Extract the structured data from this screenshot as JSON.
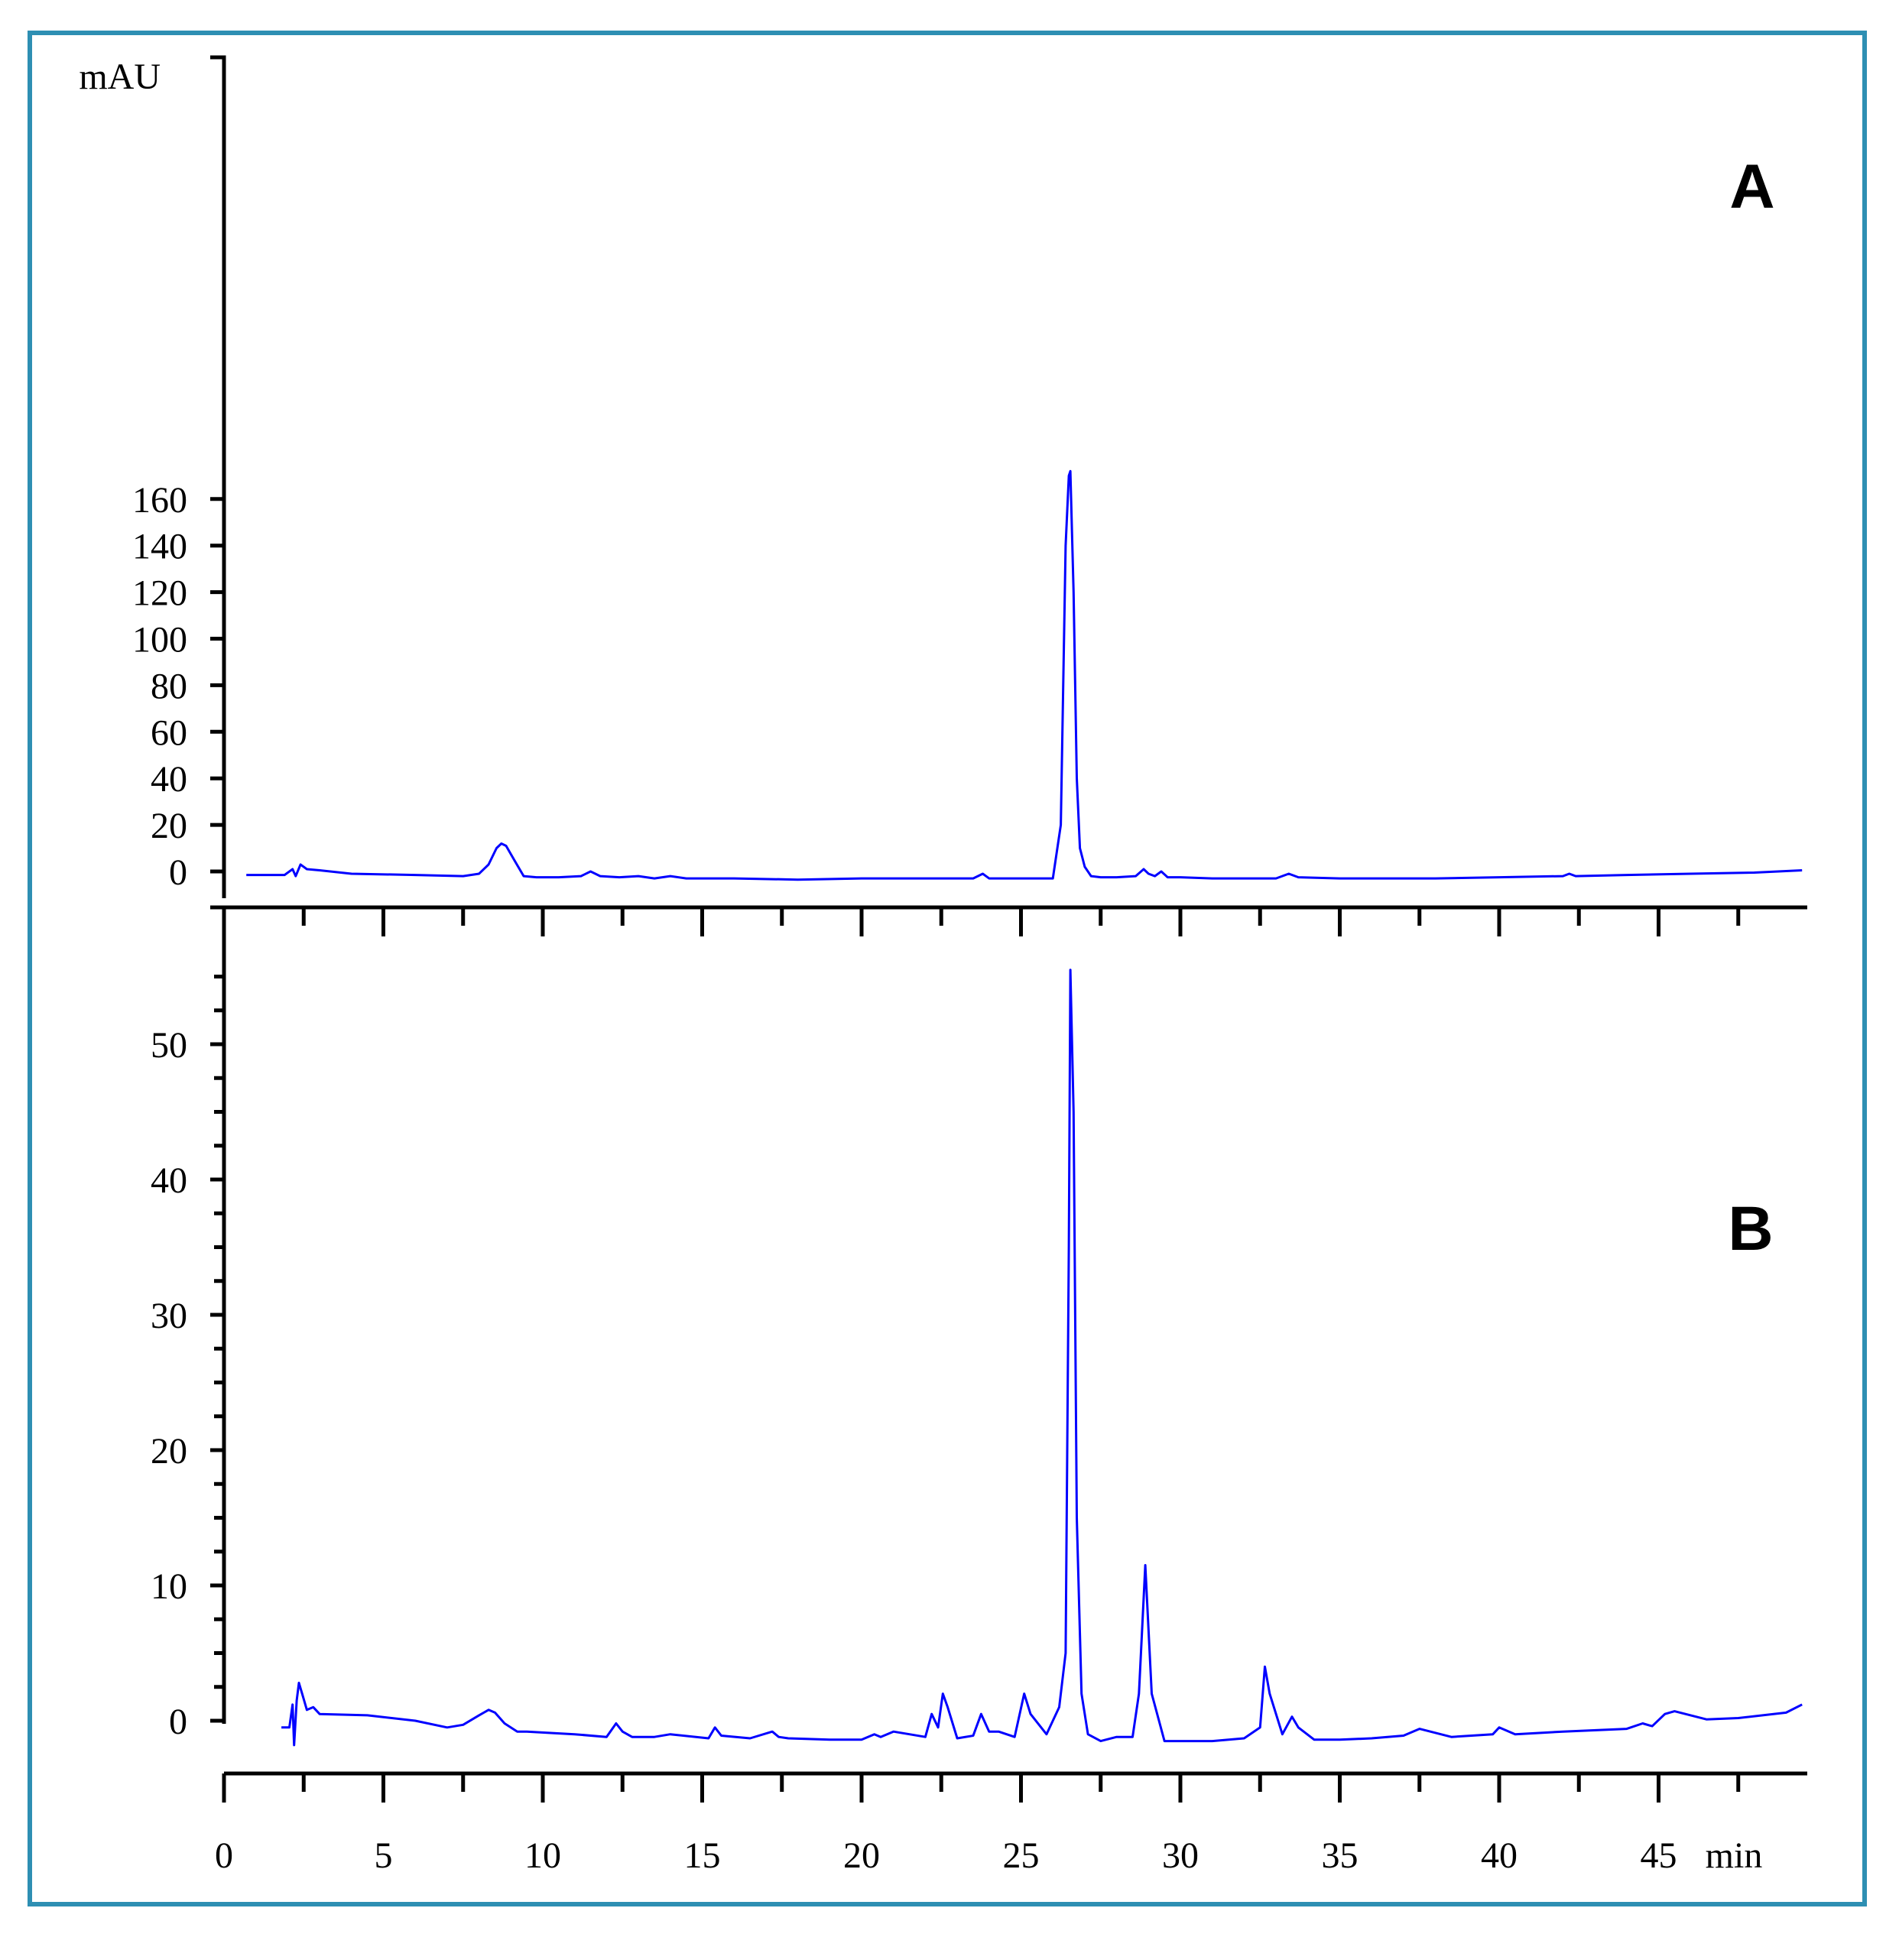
{
  "chart_data": [
    {
      "type": "line",
      "panel_label": "A",
      "ylabel": "mAU",
      "xlabel": "",
      "ylim": [
        -8,
        175
      ],
      "xlim": [
        0,
        50
      ],
      "y_ticks": [
        0,
        20,
        40,
        60,
        80,
        100,
        120,
        140,
        160
      ],
      "y_tick_labels": [
        "0",
        "20",
        "40",
        "60",
        "80",
        "100",
        "120",
        "140",
        "160"
      ],
      "y_minor_ticks": [],
      "x_ticks": [
        2.5,
        5,
        7.5,
        10,
        12.5,
        15,
        17.5,
        20,
        22.5,
        25,
        27.5,
        30,
        32.5,
        35,
        37.5,
        40,
        42.5,
        45,
        47.5
      ],
      "grid": false,
      "series": [
        {
          "color": "#0000ff",
          "x": [
            0.7,
            1.9,
            2.15,
            2.25,
            2.4,
            2.6,
            3.0,
            4.0,
            6.0,
            7.5,
            8.0,
            8.3,
            8.55,
            8.7,
            8.85,
            9.1,
            9.4,
            9.8,
            10.5,
            11.2,
            11.5,
            11.8,
            12.4,
            13.0,
            13.5,
            14.0,
            14.5,
            16.0,
            18.0,
            20.0,
            22.0,
            23.5,
            23.8,
            24.0,
            25.0,
            26.0,
            26.25,
            26.4,
            26.5,
            26.55,
            26.65,
            26.75,
            26.85,
            27.0,
            27.2,
            27.5,
            28.0,
            28.6,
            28.85,
            29.0,
            29.2,
            29.4,
            29.6,
            30.0,
            31.0,
            33.0,
            33.4,
            33.7,
            35.0,
            38.0,
            40.0,
            42.0,
            42.2,
            42.4,
            44.0,
            46.0,
            48.0,
            49.5
          ],
          "y": [
            -1.5,
            -1.5,
            1,
            -2,
            3,
            1,
            0.5,
            -1,
            -1.5,
            -2,
            -1,
            3,
            10,
            12,
            11,
            5,
            -2,
            -2.5,
            -2.5,
            -2,
            0,
            -2,
            -2.5,
            -2,
            -3,
            -2,
            -3,
            -3,
            -3.5,
            -3,
            -3,
            -3,
            -1,
            -3,
            -3,
            -3,
            20,
            140,
            170,
            172,
            120,
            40,
            10,
            2,
            -2,
            -2.5,
            -2.5,
            -2,
            1,
            -1,
            -2,
            0,
            -2.5,
            -2.5,
            -3,
            -3,
            -1,
            -2.5,
            -3,
            -3,
            -2.5,
            -2,
            -1,
            -2,
            -1.5,
            -1,
            -0.5,
            0.5
          ]
        }
      ]
    },
    {
      "type": "line",
      "panel_label": "B",
      "ylabel": "",
      "xlabel": "min",
      "ylim": [
        -2,
        56
      ],
      "xlim": [
        0,
        50
      ],
      "y_ticks": [
        0,
        10,
        20,
        30,
        40,
        50
      ],
      "y_tick_labels": [
        "0",
        "10",
        "20",
        "30",
        "40",
        "50"
      ],
      "y_minor_ticks": [
        2.5,
        5,
        7.5,
        12.5,
        15,
        17.5,
        22.5,
        25,
        27.5,
        32.5,
        35,
        37.5,
        42.5,
        45,
        47.5,
        52.5,
        55
      ],
      "x_ticks": [
        0,
        2.5,
        5,
        7.5,
        10,
        12.5,
        15,
        17.5,
        20,
        22.5,
        25,
        27.5,
        30,
        32.5,
        35,
        37.5,
        40,
        42.5,
        45,
        47.5
      ],
      "x_tick_labels": [
        "0",
        "5",
        "10",
        "15",
        "20",
        "25",
        "30",
        "35",
        "40",
        "45"
      ],
      "x_tick_label_values": [
        0,
        5,
        10,
        15,
        20,
        25,
        30,
        35,
        40,
        45
      ],
      "grid": false,
      "series": [
        {
          "color": "#0000ff",
          "x": [
            1.8,
            2.05,
            2.15,
            2.2,
            2.28,
            2.35,
            2.45,
            2.6,
            2.8,
            3.0,
            4.5,
            6.0,
            7.0,
            7.5,
            8.0,
            8.3,
            8.5,
            8.8,
            9.2,
            9.5,
            11.0,
            12.0,
            12.3,
            12.5,
            12.8,
            13.5,
            14.0,
            15.2,
            15.4,
            15.6,
            16.5,
            17.2,
            17.4,
            17.7,
            19.0,
            20.0,
            20.4,
            20.6,
            21.0,
            21.5,
            22.0,
            22.2,
            22.4,
            22.55,
            22.7,
            23.0,
            23.5,
            23.75,
            24.0,
            24.3,
            24.8,
            25.1,
            25.3,
            25.8,
            26.2,
            26.4,
            26.5,
            26.55,
            26.65,
            26.75,
            26.9,
            27.1,
            27.5,
            28.0,
            28.5,
            28.7,
            28.9,
            29.1,
            29.5,
            30.5,
            31.0,
            32.0,
            32.5,
            32.65,
            32.8,
            33.2,
            33.5,
            33.7,
            34.2,
            35.0,
            36.0,
            37.0,
            37.5,
            38.5,
            39.8,
            40.0,
            40.5,
            42.0,
            44.0,
            44.5,
            44.8,
            45.2,
            45.5,
            46.5,
            47.5,
            49.0,
            49.5
          ],
          "y": [
            -0.5,
            -0.5,
            1.2,
            -1.8,
            1.5,
            2.8,
            2.0,
            0.8,
            1.0,
            0.5,
            0.4,
            0,
            -0.5,
            -0.3,
            0.4,
            0.8,
            0.6,
            -0.2,
            -0.8,
            -0.8,
            -1.0,
            -1.2,
            -0.2,
            -0.8,
            -1.2,
            -1.2,
            -1.0,
            -1.3,
            -0.5,
            -1.1,
            -1.3,
            -0.8,
            -1.2,
            -1.3,
            -1.4,
            -1.4,
            -1.0,
            -1.2,
            -0.8,
            -1.0,
            -1.2,
            0.5,
            -0.5,
            2.0,
            1.0,
            -1.3,
            -1.1,
            0.5,
            -0.8,
            -0.8,
            -1.2,
            2.0,
            0.5,
            -1.0,
            1.0,
            5.0,
            35.0,
            55.5,
            45.0,
            15.0,
            2.0,
            -1.0,
            -1.5,
            -1.2,
            -1.2,
            2.0,
            11.5,
            2.0,
            -1.5,
            -1.5,
            -1.5,
            -1.3,
            -0.5,
            4.0,
            2.0,
            -1.0,
            0.3,
            -0.5,
            -1.4,
            -1.4,
            -1.3,
            -1.1,
            -0.6,
            -1.2,
            -1.0,
            -0.5,
            -1.0,
            -0.8,
            -0.6,
            -0.2,
            -0.4,
            0.5,
            0.7,
            0.1,
            0.2,
            0.6,
            1.2
          ]
        }
      ]
    }
  ]
}
